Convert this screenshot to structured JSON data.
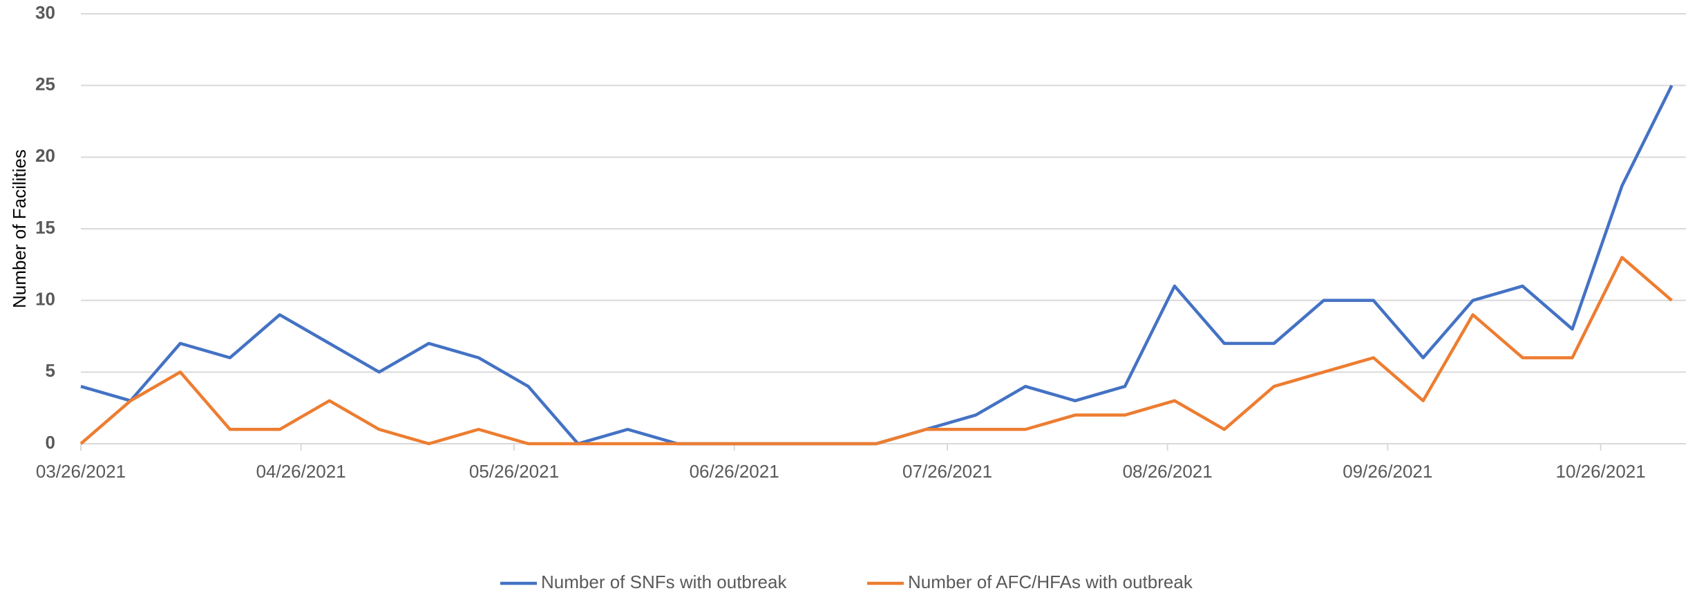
{
  "chart_data": {
    "type": "line",
    "y_label": "Number of Facilities",
    "x": [
      "03/26/2021",
      "04/02/2021",
      "04/09/2021",
      "04/16/2021",
      "04/23/2021",
      "04/30/2021",
      "05/07/2021",
      "05/14/2021",
      "05/21/2021",
      "05/28/2021",
      "06/04/2021",
      "06/11/2021",
      "06/18/2021",
      "06/25/2021",
      "07/02/2021",
      "07/09/2021",
      "07/16/2021",
      "07/23/2021",
      "07/30/2021",
      "08/06/2021",
      "08/13/2021",
      "08/20/2021",
      "08/27/2021",
      "09/03/2021",
      "09/10/2021",
      "09/17/2021",
      "09/24/2021",
      "10/01/2021",
      "10/08/2021",
      "10/15/2021",
      "10/22/2021",
      "10/29/2021",
      "11/05/2021"
    ],
    "series": [
      {
        "name": "Number of SNFs with outbreak",
        "color": "#4472c4",
        "values": [
          4,
          3,
          7,
          6,
          9,
          7,
          5,
          7,
          6,
          4,
          0,
          1,
          0,
          0,
          0,
          0,
          0,
          1,
          2,
          4,
          3,
          4,
          11,
          7,
          7,
          10,
          10,
          6,
          10,
          11,
          8,
          18,
          25
        ]
      },
      {
        "name": "Number of AFC/HFAs with outbreak",
        "color": "#ed7d31",
        "values": [
          0,
          3,
          5,
          1,
          1,
          3,
          1,
          0,
          1,
          0,
          0,
          0,
          0,
          0,
          0,
          0,
          0,
          1,
          1,
          1,
          2,
          2,
          3,
          1,
          4,
          5,
          6,
          3,
          9,
          6,
          6,
          13,
          10
        ]
      }
    ],
    "xlim": [
      "03/26/2021",
      "11/07/2021"
    ],
    "xticks": [
      "03/26/2021",
      "04/26/2021",
      "05/26/2021",
      "06/26/2021",
      "07/26/2021",
      "08/26/2021",
      "09/26/2021",
      "10/26/2021"
    ],
    "ylim": [
      0,
      30
    ],
    "yticks": [
      0,
      5,
      10,
      15,
      20,
      25,
      30
    ],
    "grid": true,
    "legend": "bottom"
  }
}
